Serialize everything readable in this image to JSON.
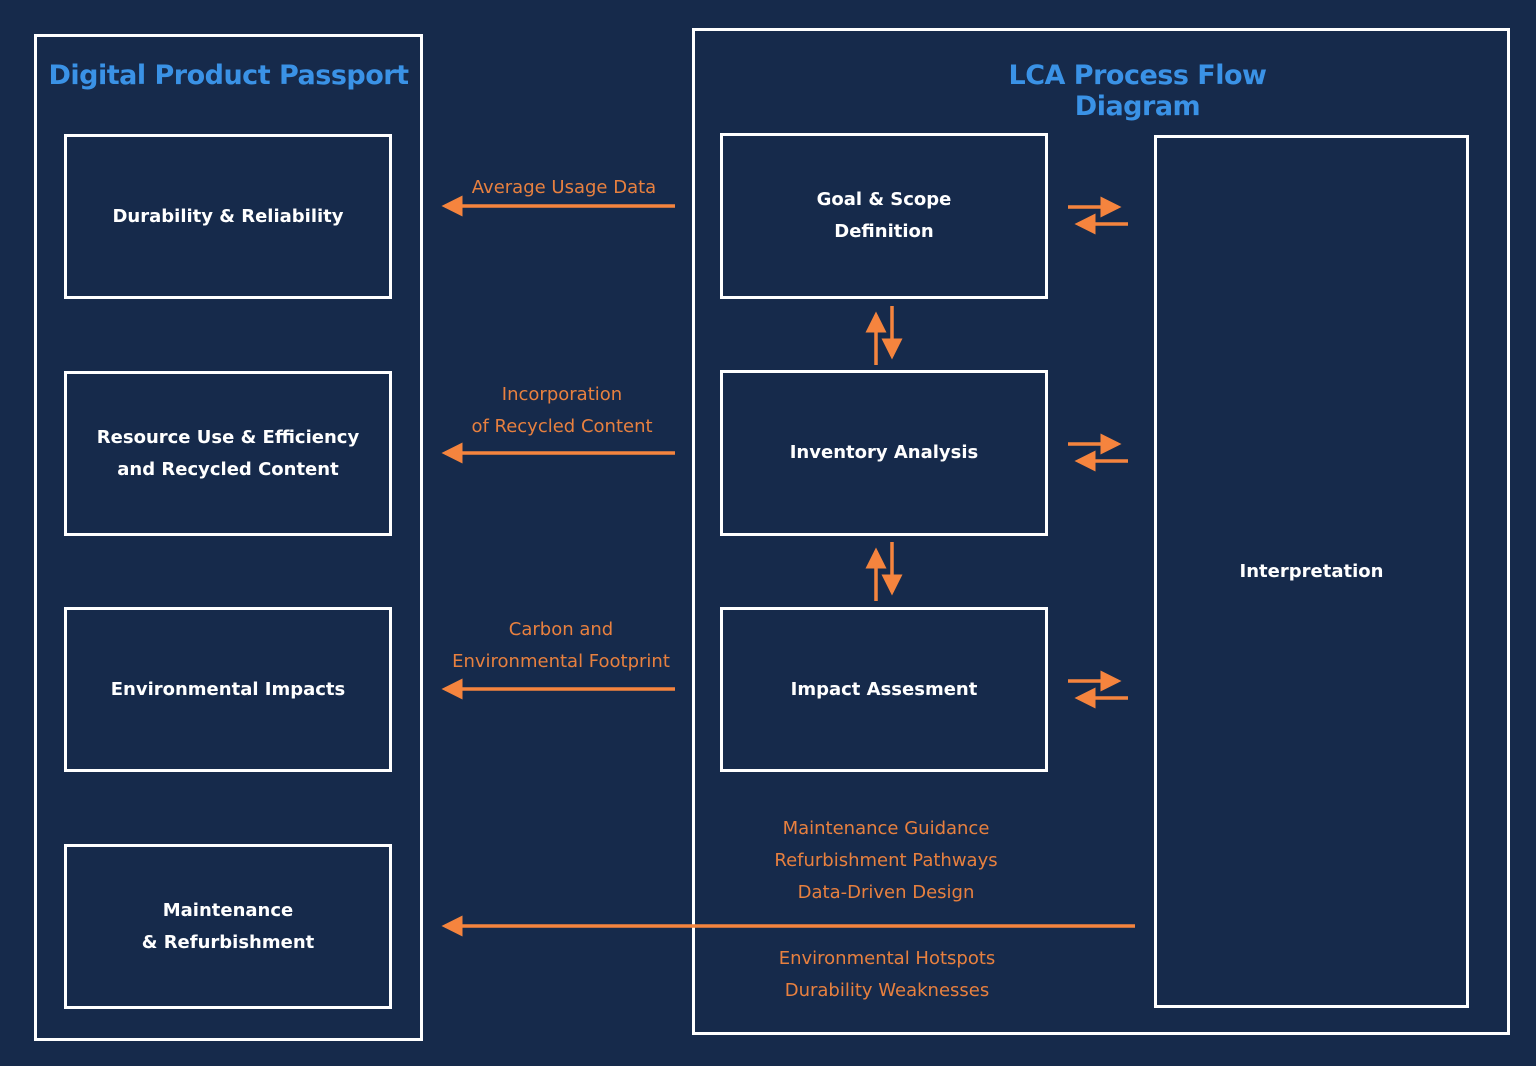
{
  "colors": {
    "background": "#162a4b",
    "title": "#3a92e6",
    "arrow": "#f5843e",
    "label": "#e8803f",
    "box_border": "#ffffff"
  },
  "dpp": {
    "title": "Digital Product Passport",
    "boxes": [
      "Durability & Reliability",
      "Resource Use & Efficiency\nand Recycled Content",
      "Environmental Impacts",
      "Maintenance\n& Refurbishment"
    ]
  },
  "lca": {
    "title": "LCA Process Flow Diagram",
    "boxes": [
      "Goal & Scope\nDefinition",
      "Inventory Analysis",
      "Impact Assesment"
    ],
    "interpretation": "Interpretation"
  },
  "flows": [
    "Average Usage Data",
    "Incorporation\nof Recycled Content",
    "Carbon and\nEnvironmental Footprint"
  ],
  "feedback_above": "Maintenance Guidance\nRefurbishment Pathways\nData-Driven Design",
  "feedback_below": "Environmental Hotspots\nDurability Weaknesses"
}
